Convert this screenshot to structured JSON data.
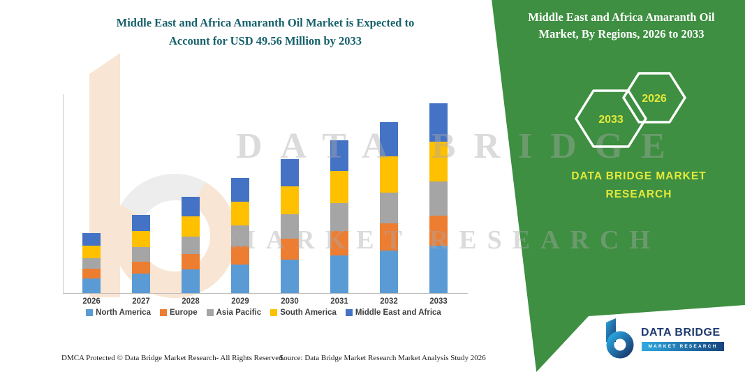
{
  "left_header": {
    "line1": "Middle East and Africa Amaranth Oil Market is Expected to",
    "line2": "Account for USD 49.56 Million by 2033"
  },
  "right_panel": {
    "title_line1": "Middle East and Africa Amaranth Oil",
    "title_line2": "Market, By Regions, 2026 to 2033",
    "hex_back_year": "2033",
    "hex_front_year": "2026",
    "brand_line1": "DATA BRIDGE MARKET",
    "brand_line2": "RESEARCH",
    "accent_green": "#3E8F41",
    "accent_yellow": "#E4E93B"
  },
  "watermark": {
    "line1": "DATA BRIDGE",
    "line2": "MARKET RESEARCH"
  },
  "chart_data": {
    "type": "bar",
    "stacked": true,
    "title": "Middle East and Africa Amaranth Oil Market is Expected to Account for USD 49.56 Million by 2033",
    "unit": "USD Million",
    "categories": [
      "2026",
      "2027",
      "2028",
      "2029",
      "2030",
      "2031",
      "2032",
      "2033"
    ],
    "series": [
      {
        "name": "North America",
        "color": "#5B9BD5",
        "values": [
          3.9,
          5.1,
          6.3,
          7.5,
          8.7,
          9.9,
          11.2,
          12.4
        ]
      },
      {
        "name": "Europe",
        "color": "#ED7D31",
        "values": [
          2.5,
          3.2,
          4.0,
          4.8,
          5.6,
          6.4,
          7.1,
          7.9
        ]
      },
      {
        "name": "Asia Pacific",
        "color": "#A5A5A5",
        "values": [
          2.8,
          3.7,
          4.5,
          5.4,
          6.3,
          7.2,
          8.0,
          8.9
        ]
      },
      {
        "name": "South America",
        "color": "#FFC000",
        "values": [
          3.3,
          4.3,
          5.3,
          6.3,
          7.3,
          8.4,
          9.4,
          10.4
        ]
      },
      {
        "name": "Middle East and Africa",
        "color": "#4472C4",
        "values": [
          3.2,
          4.1,
          5.1,
          6.2,
          7.1,
          8.1,
          9.1,
          9.96
        ]
      }
    ],
    "totals": [
      15.7,
      20.4,
      25.2,
      30.2,
      35.0,
      40.0,
      44.8,
      49.56
    ],
    "ylim": [
      0,
      52
    ],
    "y_axis_visible": false,
    "legend_position": "bottom"
  },
  "footer": {
    "dmca": "DMCA Protected © Data Bridge Market Research-  All Rights Reserved.",
    "source": "Source: Data Bridge Market Research  Market Analysis Study 2026"
  },
  "logo": {
    "name": "DATA BRIDGE",
    "subtitle": "MARKET RESEARCH"
  }
}
